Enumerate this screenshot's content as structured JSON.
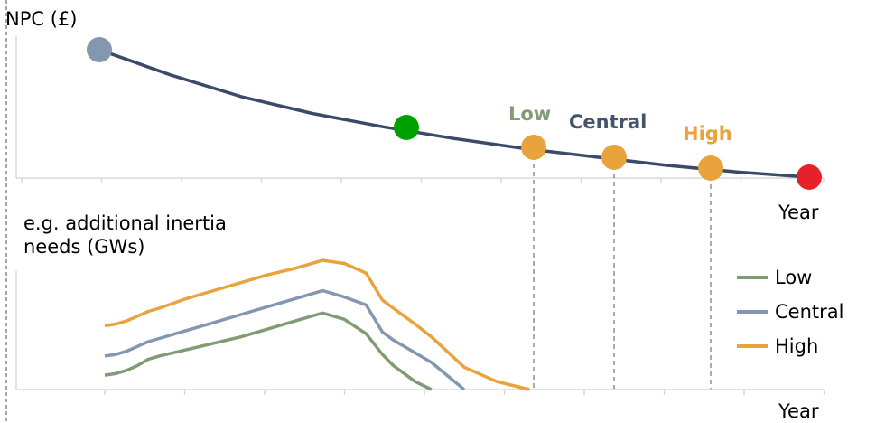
{
  "chart_data": [
    {
      "type": "line",
      "ylabel": "NPC (£)",
      "xlabel": "Year",
      "x": [
        0,
        1,
        2,
        3,
        4,
        5,
        6,
        7,
        8,
        9,
        10
      ],
      "curve": [
        1.0,
        0.85,
        0.72,
        0.62,
        0.54,
        0.47,
        0.41,
        0.36,
        0.31,
        0.27,
        0.24
      ],
      "points": [
        {
          "x": 0,
          "y": 1.0,
          "color": "#8497b0",
          "label": ""
        },
        {
          "x": 3.83,
          "y": 0.6,
          "color": "#00a000",
          "label": ""
        },
        {
          "x": 5.6,
          "y": 0.44,
          "color": "#e8a33c",
          "label": "Low",
          "label_color": "#7f9c74"
        },
        {
          "x": 6.6,
          "y": 0.38,
          "color": "#e8a33c",
          "label": "Central",
          "label_color": "#44546a"
        },
        {
          "x": 7.8,
          "y": 0.34,
          "color": "#e8a33c",
          "label": "High",
          "label_color": "#e8a33c"
        },
        {
          "x": 8.95,
          "y": 0.29,
          "color": "#e8202a",
          "label": ""
        }
      ],
      "curve_color": "#3a4a68"
    },
    {
      "type": "line",
      "ylabel": "e.g. additional inertia needs (GWs)",
      "xlabel": "Year",
      "x": [
        0,
        0.2,
        0.4,
        0.6,
        0.8,
        1,
        1.5,
        2,
        2.5,
        3,
        3.5,
        3.9,
        4.0,
        4.2,
        4.4,
        4.8,
        5.1,
        5.3,
        5.5,
        5.7,
        6.0,
        6.6,
        7.2,
        7.8
      ],
      "series": [
        {
          "name": "Low",
          "color": "#7f9c74",
          "values": [
            0.09,
            0.1,
            0.12,
            0.15,
            0.19,
            0.21,
            0.25,
            0.29,
            0.33,
            0.38,
            0.43,
            0.47,
            0.48,
            0.46,
            0.44,
            0.35,
            0.22,
            0.15,
            0.1,
            0.05,
            0.0,
            null,
            null,
            null
          ]
        },
        {
          "name": "Central",
          "color": "#8497b0",
          "values": [
            0.21,
            0.22,
            0.24,
            0.27,
            0.3,
            0.32,
            0.37,
            0.42,
            0.47,
            0.52,
            0.57,
            0.61,
            0.62,
            0.6,
            0.58,
            0.53,
            0.36,
            0.31,
            0.27,
            0.23,
            0.17,
            0.0,
            null,
            null
          ]
        },
        {
          "name": "High",
          "color": "#e8a33c",
          "values": [
            0.4,
            0.41,
            0.43,
            0.46,
            0.49,
            0.51,
            0.57,
            0.62,
            0.67,
            0.72,
            0.76,
            0.8,
            0.81,
            0.8,
            0.79,
            0.73,
            0.56,
            0.51,
            0.46,
            0.41,
            0.33,
            0.14,
            0.05,
            0.0
          ]
        }
      ]
    }
  ]
}
